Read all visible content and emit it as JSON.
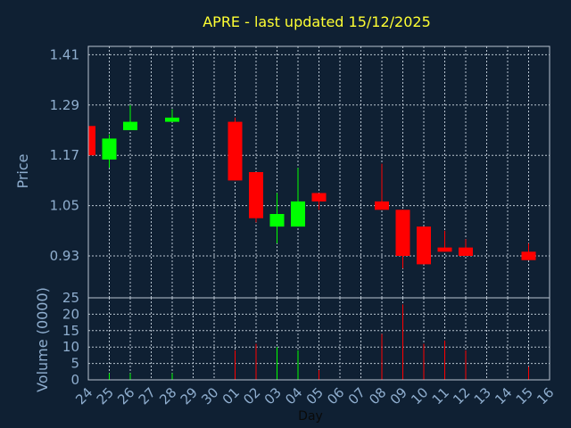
{
  "chart_data": {
    "type": "candlestick",
    "title": "APRE - last updated 15/12/2025",
    "xlabel": "Day",
    "price_panel": {
      "ylabel": "Price",
      "yticks": [
        "1.41",
        "1.29",
        "1.17",
        "1.05",
        "0.93"
      ],
      "ylim": [
        0.83,
        1.43
      ]
    },
    "volume_panel": {
      "ylabel": "Volume (0000)",
      "yticks": [
        "25",
        "20",
        "15",
        "10",
        "5",
        "0"
      ],
      "ylim": [
        0,
        25
      ]
    },
    "days": [
      "24",
      "25",
      "26",
      "27",
      "28",
      "29",
      "30",
      "01",
      "02",
      "03",
      "04",
      "05",
      "06",
      "07",
      "08",
      "09",
      "10",
      "11",
      "12",
      "13",
      "14",
      "15",
      "16"
    ],
    "candles": [
      {
        "day": "24",
        "open": 1.24,
        "close": 1.17,
        "high": 1.24,
        "low": 1.17,
        "volume": 0
      },
      {
        "day": "25",
        "open": 1.16,
        "close": 1.21,
        "high": 1.22,
        "low": 1.14,
        "volume": 2
      },
      {
        "day": "26",
        "open": 1.23,
        "close": 1.25,
        "high": 1.29,
        "low": 1.23,
        "volume": 2
      },
      {
        "day": "28",
        "open": 1.25,
        "close": 1.26,
        "high": 1.28,
        "low": 1.25,
        "volume": 2
      },
      {
        "day": "01",
        "open": 1.25,
        "close": 1.11,
        "high": 1.26,
        "low": 1.11,
        "volume": 9
      },
      {
        "day": "02",
        "open": 1.13,
        "close": 1.02,
        "high": 1.13,
        "low": 1.01,
        "volume": 11
      },
      {
        "day": "03",
        "open": 1.0,
        "close": 1.03,
        "high": 1.08,
        "low": 0.96,
        "volume": 10
      },
      {
        "day": "04",
        "open": 1.0,
        "close": 1.06,
        "high": 1.14,
        "low": 1.0,
        "volume": 9
      },
      {
        "day": "05",
        "open": 1.08,
        "close": 1.06,
        "high": 1.08,
        "low": 1.04,
        "volume": 3
      },
      {
        "day": "08",
        "open": 1.06,
        "close": 1.04,
        "high": 1.15,
        "low": 1.04,
        "volume": 14
      },
      {
        "day": "09",
        "open": 1.04,
        "close": 0.93,
        "high": 1.04,
        "low": 0.9,
        "volume": 23
      },
      {
        "day": "10",
        "open": 1.0,
        "close": 0.91,
        "high": 1.0,
        "low": 0.91,
        "volume": 11
      },
      {
        "day": "11",
        "open": 0.95,
        "close": 0.94,
        "high": 0.99,
        "low": 0.94,
        "volume": 12
      },
      {
        "day": "12",
        "open": 0.95,
        "close": 0.93,
        "high": 0.97,
        "low": 0.93,
        "volume": 9
      },
      {
        "day": "15",
        "open": 0.94,
        "close": 0.92,
        "high": 0.96,
        "low": 0.92,
        "volume": 4
      }
    ],
    "colors": {
      "background": "#0f2033",
      "up": "#00ff00",
      "down": "#ff0000",
      "grid": "#b8c4d0",
      "title": "#ffff33",
      "axis_text": "#8faecf"
    },
    "grid": true
  }
}
